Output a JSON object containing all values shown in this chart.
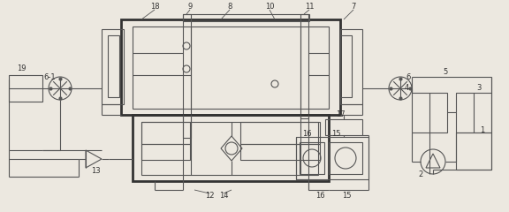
{
  "bg_color": "#ece8e0",
  "lc": "#555555",
  "lc_thick": "#333333",
  "lw_thick": 2.0,
  "lw_thin": 0.8,
  "fs": 6.0,
  "fc": "#333333"
}
